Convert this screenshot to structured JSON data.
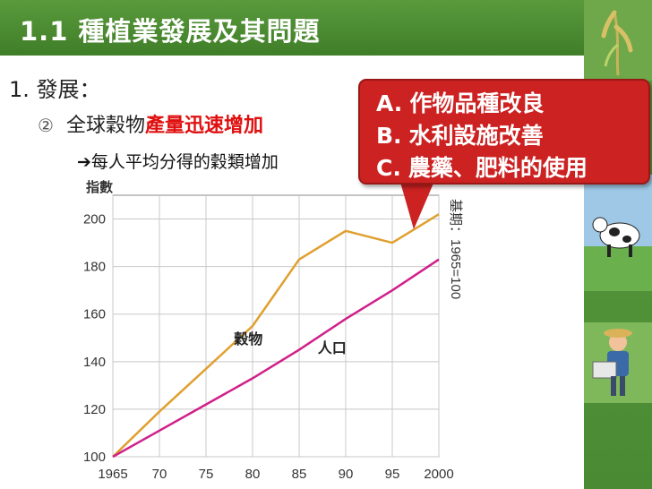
{
  "slide": {
    "title": "1.1 種植業發展及其問題",
    "section": "1. 發展：",
    "item_marker": "②",
    "item_prefix": "全球穀物",
    "item_highlight": "產量迅速增加",
    "arrow_text": "➔每人平均分得的穀類增加",
    "callout": [
      {
        "letter": "A.",
        "text": "作物品種改良"
      },
      {
        "letter": "B.",
        "text": "水利設施改善"
      },
      {
        "letter": "C.",
        "text": "農藥、肥料的使用"
      }
    ]
  },
  "colors": {
    "title_green": "#4a8a33",
    "callout_red": "#cc2222",
    "grain_line": "#e0a030",
    "population_line": "#d0208a"
  },
  "side_icons": [
    "rice-plant-icon",
    "cow-field-icon",
    "farmer-icon"
  ],
  "chart_data": {
    "type": "line",
    "ylabel": "指數",
    "base_note": "基期：1965=100",
    "x": [
      1965,
      1970,
      1975,
      1980,
      1985,
      1990,
      1995,
      2000
    ],
    "xticklabels": [
      "1965",
      "70",
      "75",
      "80",
      "85",
      "90",
      "95",
      "2000"
    ],
    "ylim": [
      100,
      210
    ],
    "yticks": [
      100,
      120,
      140,
      160,
      180,
      200
    ],
    "grid": true,
    "series": [
      {
        "name": "穀物",
        "values": [
          100,
          119,
          137,
          155,
          183,
          195,
          190,
          202
        ]
      },
      {
        "name": "人口",
        "values": [
          100,
          111,
          122,
          133,
          145,
          158,
          170,
          183
        ]
      }
    ]
  }
}
